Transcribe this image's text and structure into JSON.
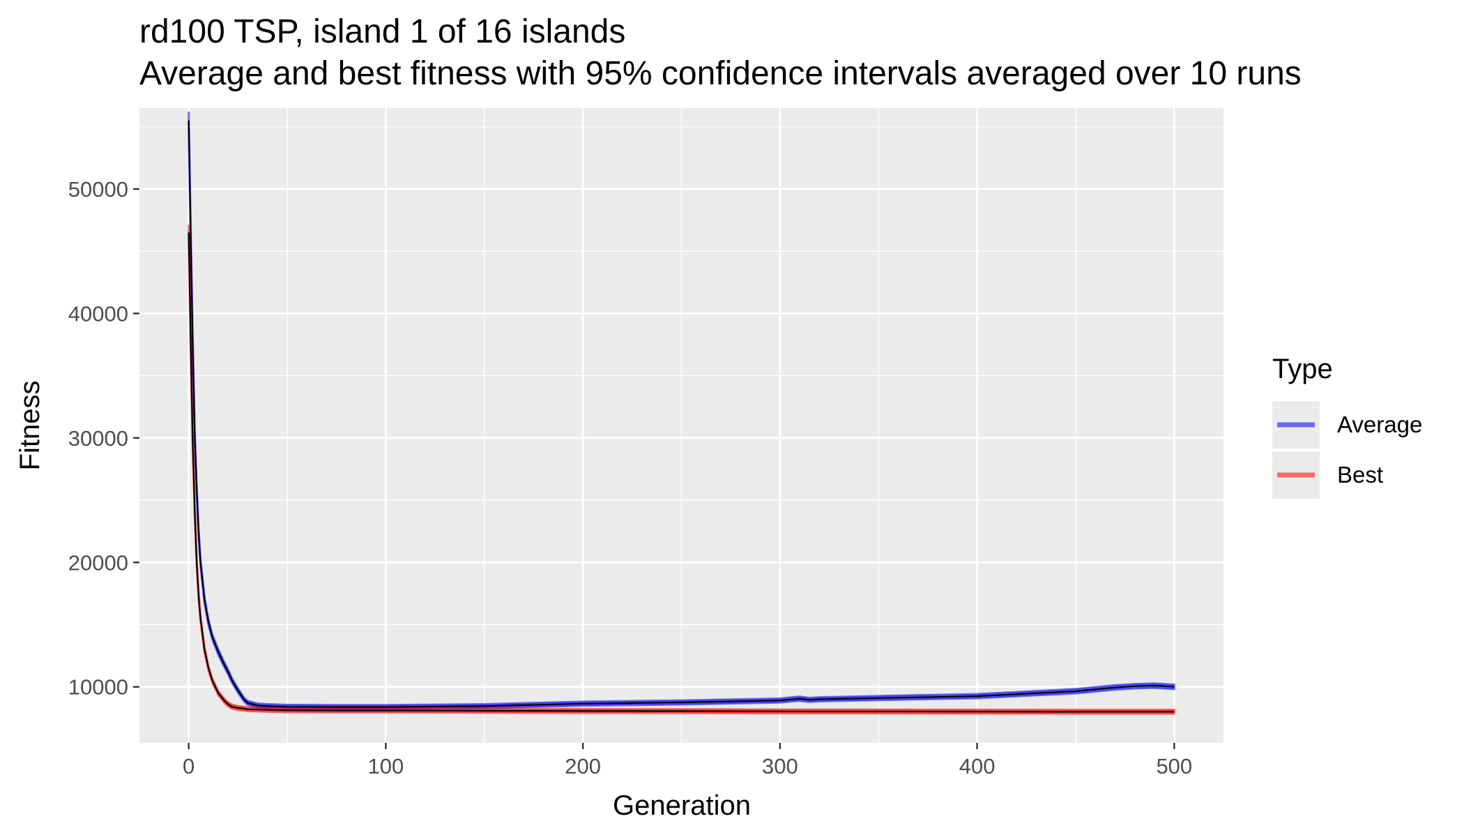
{
  "chart_data": {
    "type": "line",
    "title": "rd100 TSP, island 1 of 16 islands",
    "subtitle": "Average and best fitness with 95% confidence intervals averaged over 10 runs",
    "xlabel": "Generation",
    "ylabel": "Fitness",
    "xlim": [
      -25,
      525
    ],
    "ylim": [
      5500,
      56500
    ],
    "x_ticks": [
      0,
      100,
      200,
      300,
      400,
      500
    ],
    "y_ticks": [
      10000,
      20000,
      30000,
      40000,
      50000
    ],
    "grid": true,
    "legend": {
      "title": "Type",
      "placement": "right"
    },
    "series": [
      {
        "name": "Average",
        "color": "#0000ff",
        "x": [
          0,
          1,
          2,
          3,
          4,
          5,
          6,
          8,
          10,
          12,
          15,
          18,
          20,
          22,
          25,
          28,
          30,
          35,
          40,
          50,
          75,
          100,
          150,
          200,
          250,
          300,
          310,
          315,
          320,
          350,
          400,
          450,
          470,
          480,
          490,
          500
        ],
        "y": [
          55500,
          46500,
          38000,
          30500,
          26000,
          22500,
          20000,
          17000,
          15200,
          14000,
          12800,
          11800,
          11200,
          10500,
          9700,
          9000,
          8700,
          8500,
          8450,
          8400,
          8380,
          8380,
          8450,
          8650,
          8750,
          8900,
          9050,
          8950,
          9000,
          9100,
          9250,
          9650,
          9950,
          10050,
          10100,
          10000
        ]
      },
      {
        "name": "Best",
        "color": "#ff0000",
        "x": [
          0,
          1,
          2,
          3,
          4,
          5,
          6,
          8,
          10,
          12,
          15,
          18,
          20,
          22,
          25,
          28,
          30,
          35,
          40,
          50,
          75,
          100,
          150,
          200,
          250,
          300,
          350,
          400,
          450,
          500
        ],
        "y": [
          46500,
          37800,
          30000,
          24300,
          20200,
          17400,
          15500,
          13000,
          11500,
          10500,
          9500,
          8900,
          8600,
          8400,
          8300,
          8250,
          8200,
          8180,
          8150,
          8120,
          8100,
          8100,
          8080,
          8060,
          8050,
          8030,
          8020,
          8010,
          8000,
          8000
        ]
      }
    ]
  }
}
